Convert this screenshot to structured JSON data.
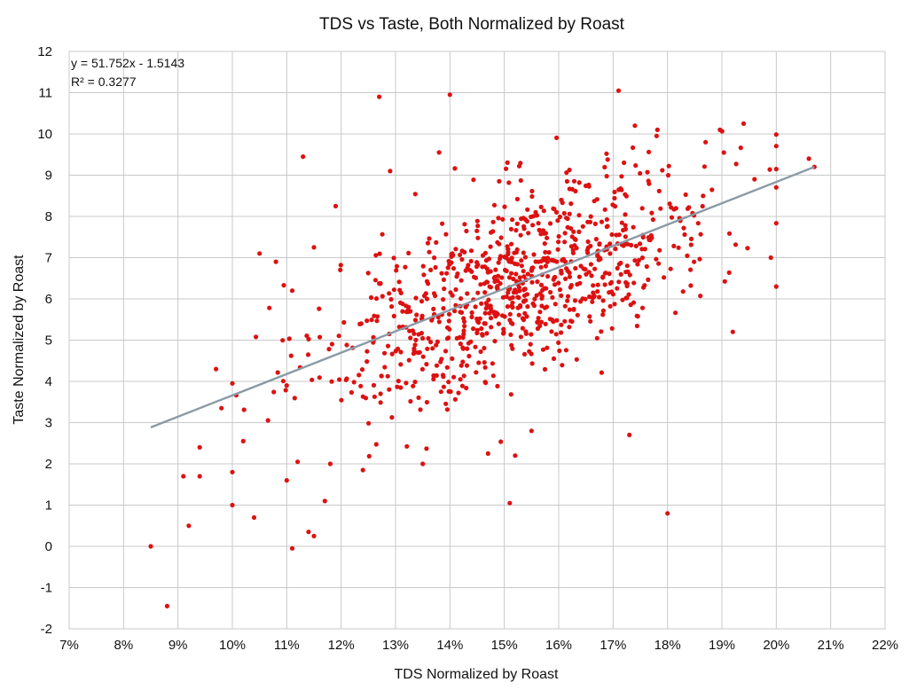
{
  "chart_data": {
    "type": "scatter",
    "title": "TDS vs Taste, Both Normalized by Roast",
    "xlabel": "TDS Normalized by Roast",
    "ylabel": "Taste Normalized by Roast",
    "xlim": [
      0.07,
      0.22
    ],
    "ylim": [
      -2,
      12
    ],
    "x_ticks": [
      0.07,
      0.08,
      0.09,
      0.1,
      0.11,
      0.12,
      0.13,
      0.14,
      0.15,
      0.16,
      0.17,
      0.18,
      0.19,
      0.2,
      0.21,
      0.22
    ],
    "x_tick_labels": [
      "7%",
      "8%",
      "9%",
      "10%",
      "11%",
      "12%",
      "13%",
      "14%",
      "15%",
      "16%",
      "17%",
      "18%",
      "19%",
      "20%",
      "21%",
      "22%"
    ],
    "y_ticks": [
      -2,
      -1,
      0,
      1,
      2,
      3,
      4,
      5,
      6,
      7,
      8,
      9,
      10,
      11,
      12
    ],
    "y_tick_labels": [
      "-2",
      "-1",
      "0",
      "1",
      "2",
      "3",
      "4",
      "5",
      "6",
      "7",
      "8",
      "9",
      "10",
      "11",
      "12"
    ],
    "grid": true,
    "point_color": "#dd1111",
    "trendline": {
      "slope": 51.752,
      "intercept": -1.5143,
      "r_squared": 0.3277,
      "x_range": [
        0.085,
        0.207
      ],
      "color": "#8a9aa6",
      "equation_label": "y = 51.752x - 1.5143",
      "r2_label": "R² = 0.3277"
    },
    "outliers": [
      [
        0.085,
        0.0
      ],
      [
        0.088,
        -1.45
      ],
      [
        0.091,
        1.7
      ],
      [
        0.092,
        0.5
      ],
      [
        0.094,
        2.4
      ],
      [
        0.094,
        1.7
      ],
      [
        0.097,
        4.3
      ],
      [
        0.098,
        3.35
      ],
      [
        0.1,
        3.95
      ],
      [
        0.1,
        1.8
      ],
      [
        0.1,
        1.0
      ],
      [
        0.102,
        2.55
      ],
      [
        0.104,
        0.7
      ],
      [
        0.105,
        7.1
      ],
      [
        0.108,
        6.9
      ],
      [
        0.11,
        1.6
      ],
      [
        0.11,
        3.9
      ],
      [
        0.111,
        6.2
      ],
      [
        0.111,
        -0.05
      ],
      [
        0.113,
        9.45
      ],
      [
        0.114,
        0.35
      ],
      [
        0.115,
        0.25
      ],
      [
        0.115,
        7.25
      ],
      [
        0.117,
        1.1
      ],
      [
        0.118,
        2.0
      ],
      [
        0.119,
        8.25
      ],
      [
        0.127,
        10.9
      ],
      [
        0.129,
        9.1
      ],
      [
        0.138,
        9.55
      ],
      [
        0.14,
        10.95
      ],
      [
        0.151,
        1.05
      ],
      [
        0.171,
        11.05
      ],
      [
        0.172,
        9.3
      ],
      [
        0.174,
        10.2
      ],
      [
        0.173,
        2.7
      ],
      [
        0.18,
        0.8
      ],
      [
        0.178,
        9.95
      ],
      [
        0.187,
        9.8
      ],
      [
        0.194,
        10.25
      ],
      [
        0.192,
        5.2
      ],
      [
        0.196,
        8.9
      ],
      [
        0.199,
        7.0
      ],
      [
        0.2,
        6.3
      ],
      [
        0.206,
        9.4
      ],
      [
        0.207,
        9.2
      ],
      [
        0.152,
        2.2
      ],
      [
        0.147,
        2.25
      ],
      [
        0.135,
        2.0
      ],
      [
        0.155,
        2.8
      ],
      [
        0.124,
        1.85
      ],
      [
        0.112,
        2.05
      ]
    ],
    "cluster": {
      "n_points": 880,
      "x_mean": 0.153,
      "x_sd": 0.018,
      "y_noise_sd": 1.12,
      "x_range": [
        0.1,
        0.2
      ],
      "y_range": [
        1.8,
        10.1
      ]
    }
  }
}
